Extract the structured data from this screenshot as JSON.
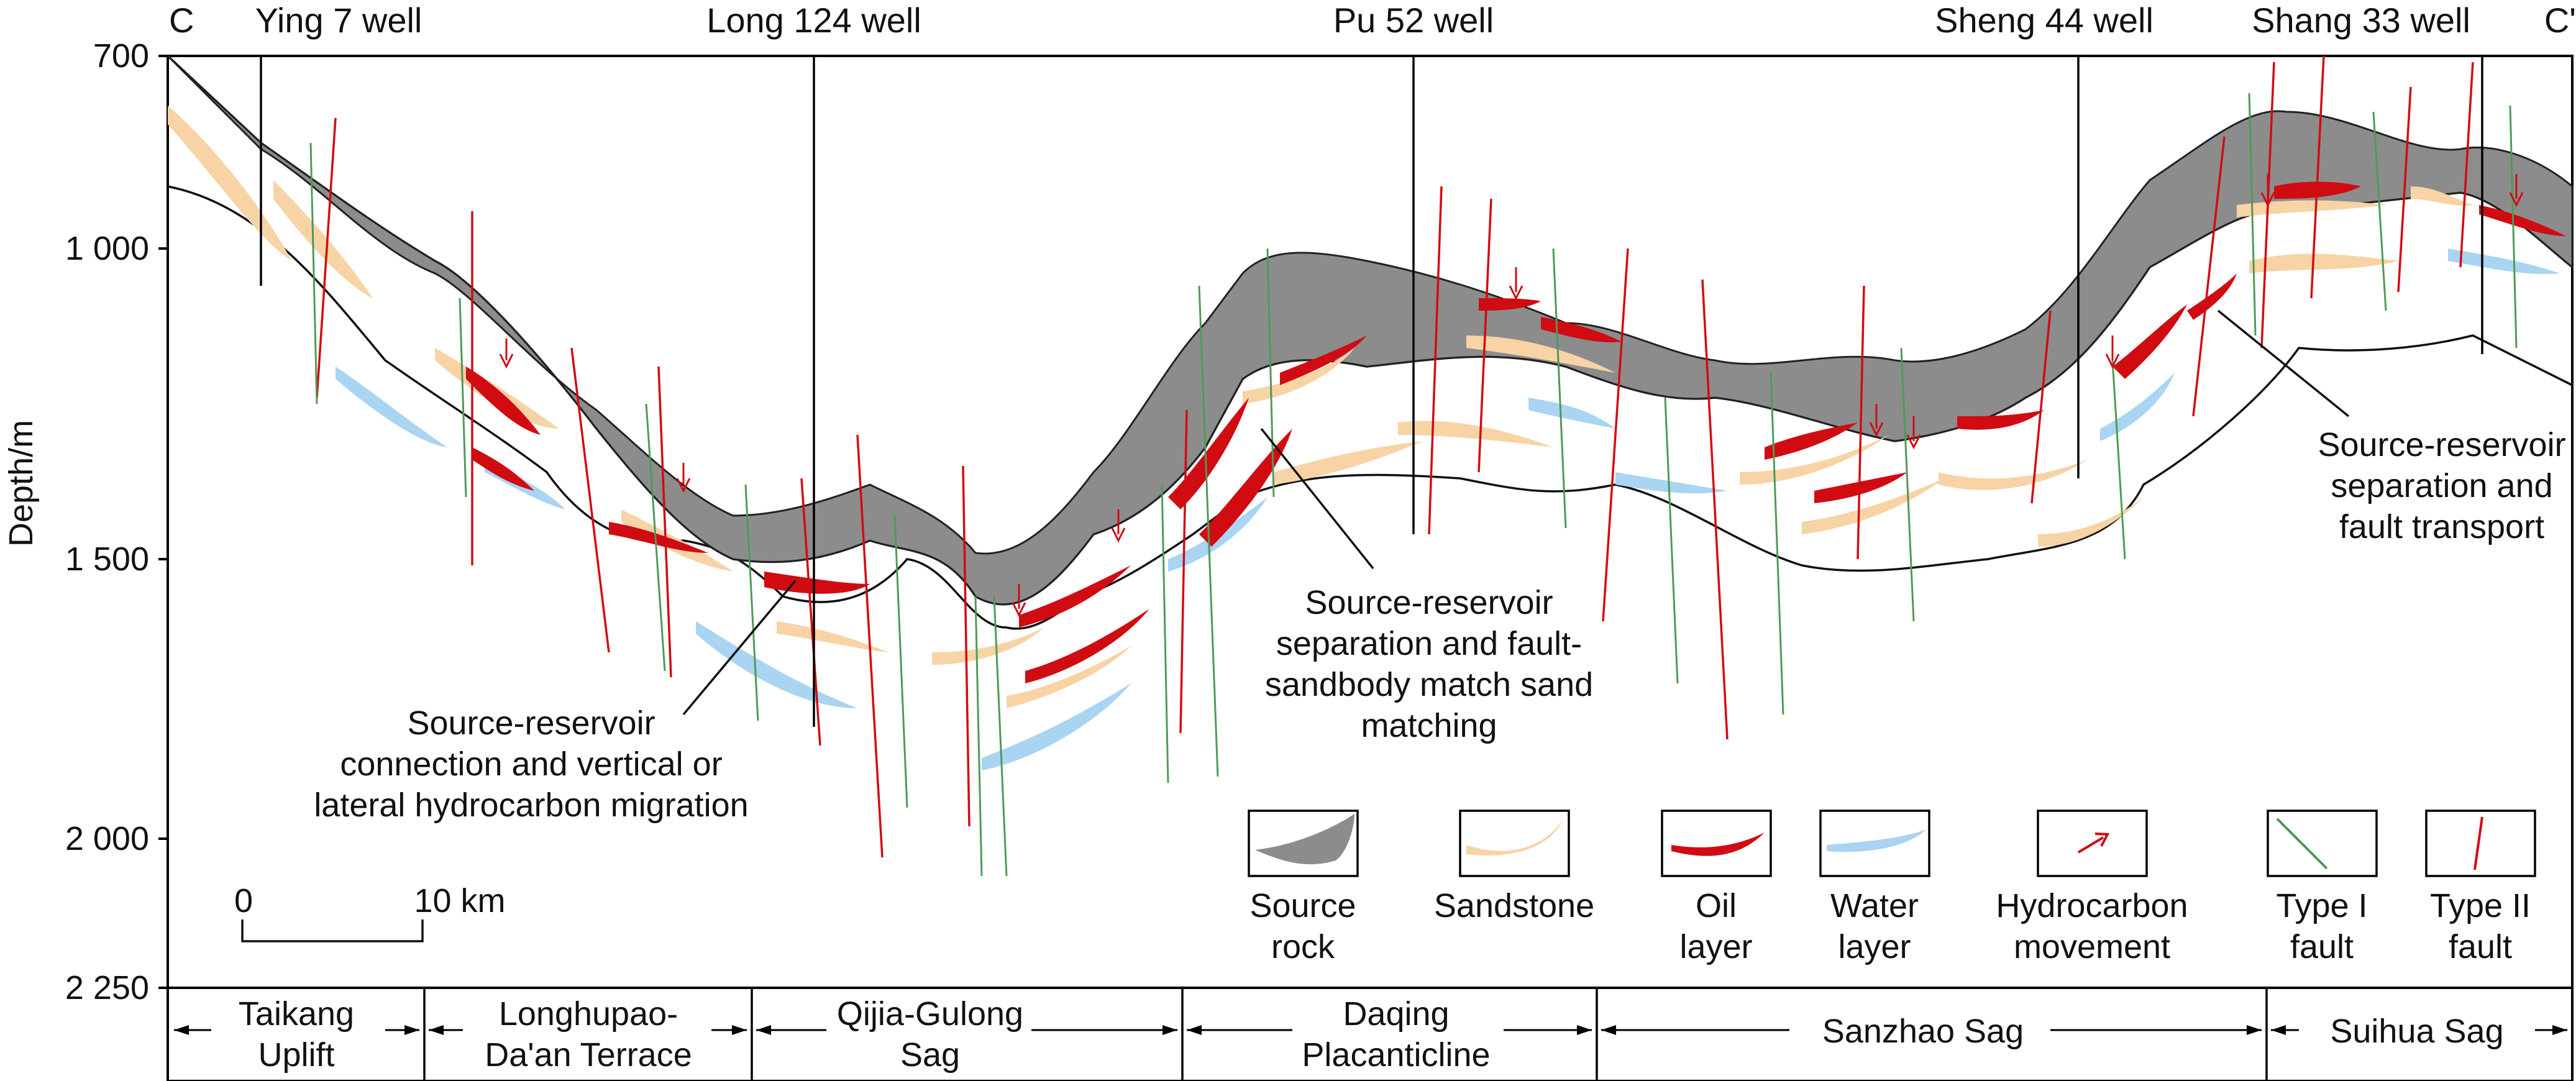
{
  "section": {
    "start_letter": "C",
    "end_letter": "C'"
  },
  "wells": [
    {
      "name": "Ying 7 well"
    },
    {
      "name": "Long 124 well"
    },
    {
      "name": "Pu 52 well"
    },
    {
      "name": "Sheng 44 well"
    },
    {
      "name": "Shang 33 well"
    }
  ],
  "y_axis": {
    "title": "Depth/m",
    "ticks": [
      "700",
      "1 000",
      "1 500",
      "2 000",
      "2 250"
    ]
  },
  "annotations": {
    "connection": [
      "Source-reservoir",
      "connection and vertical or",
      "lateral hydrocarbon migration"
    ],
    "fault_sandbody": [
      "Source-reservoir",
      "separation and fault-",
      "sandbody match sand",
      "matching"
    ],
    "fault_transport": [
      "Source-reservoir",
      "separation and",
      "fault transport"
    ]
  },
  "scale_bar": {
    "start": "0",
    "end": "10 km"
  },
  "legend": [
    {
      "key": "source",
      "lines": [
        "Source",
        "rock"
      ],
      "color": "#8c8c8c"
    },
    {
      "key": "sand",
      "lines": [
        "Sandstone"
      ],
      "color": "#f7d3a6"
    },
    {
      "key": "oil",
      "lines": [
        "Oil",
        "layer"
      ],
      "color": "#d10b12"
    },
    {
      "key": "water",
      "lines": [
        "Water",
        "layer"
      ],
      "color": "#a9d4f2"
    },
    {
      "key": "hc",
      "lines": [
        "Hydrocarbon",
        "movement"
      ],
      "color": "#d10b12"
    },
    {
      "key": "f1",
      "lines": [
        "Type I",
        "fault"
      ],
      "color": "#4f9a57"
    },
    {
      "key": "f2",
      "lines": [
        "Type II",
        "fault"
      ],
      "color": "#d10b12"
    }
  ],
  "units": [
    {
      "lines": [
        "Taikang",
        "Uplift"
      ]
    },
    {
      "lines": [
        "Longhupao-",
        "Da'an Terrace"
      ]
    },
    {
      "lines": [
        "Qijia-Gulong",
        "Sag"
      ]
    },
    {
      "lines": [
        "Daqing",
        "Placanticline"
      ]
    },
    {
      "lines": [
        "Sanzhao Sag"
      ]
    },
    {
      "lines": [
        "Suihua Sag"
      ]
    }
  ]
}
